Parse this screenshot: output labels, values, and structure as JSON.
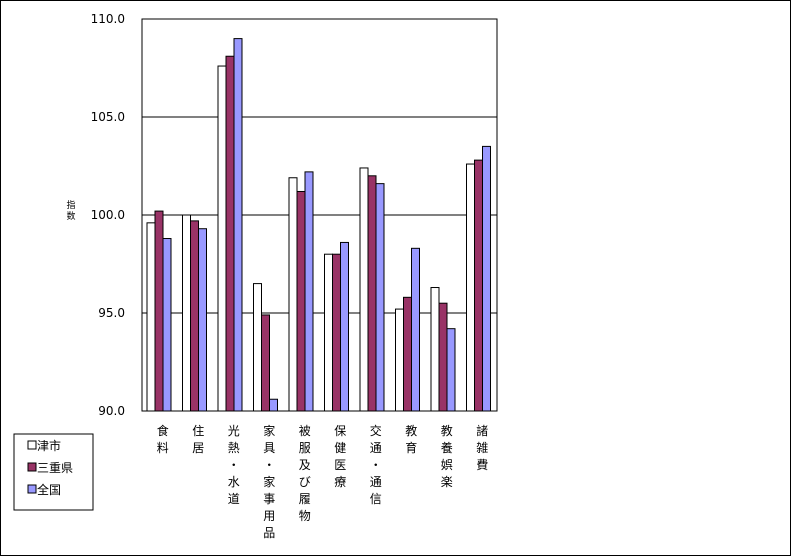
{
  "chart_data": {
    "type": "bar",
    "title": "",
    "xlabel": "",
    "ylabel": "指数",
    "ylim": [
      90,
      110
    ],
    "yticks": [
      "90.0",
      "95.0",
      "100.0",
      "105.0",
      "110.0"
    ],
    "grid": true,
    "legend_position": "bottom-left",
    "categories": [
      "食料",
      "住居",
      "光熱・水道",
      "家具・家事用品",
      "被服及び履物",
      "保健医療",
      "交通・通信",
      "教育",
      "教養娯楽",
      "諸雑費"
    ],
    "series": [
      {
        "name": "津市",
        "color": "#ffffff",
        "values": [
          99.6,
          100.0,
          107.6,
          96.5,
          101.9,
          98.0,
          102.4,
          95.2,
          96.3,
          102.6
        ]
      },
      {
        "name": "三重県",
        "color": "#993366",
        "values": [
          100.2,
          99.7,
          108.1,
          94.9,
          101.2,
          98.0,
          102.0,
          95.8,
          95.5,
          102.8
        ]
      },
      {
        "name": "全国",
        "color": "#9999ff",
        "values": [
          98.8,
          99.3,
          109.0,
          90.6,
          102.2,
          98.6,
          101.6,
          98.3,
          94.2,
          103.5
        ]
      }
    ]
  }
}
